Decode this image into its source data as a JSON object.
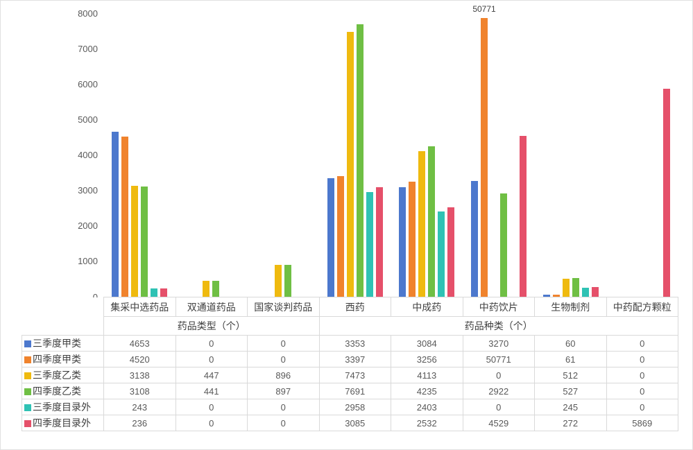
{
  "chart_data": {
    "type": "bar",
    "title": "",
    "xlabel": "",
    "ylabel": "",
    "ylim": [
      0,
      8000
    ],
    "y_ticks": [
      "0",
      "1000",
      "2000",
      "3000",
      "4000",
      "5000",
      "6000",
      "7000",
      "8000"
    ],
    "grid": false,
    "legend_position": "table-left",
    "categories": [
      "集采中选药品",
      "双通道药品",
      "国家谈判药品",
      "西药",
      "中成药",
      "中药饮片",
      "生物制剂",
      "中药配方颗粒"
    ],
    "category_groups": [
      {
        "label": "药品类型（个）",
        "span": 3
      },
      {
        "label": "药品种类（个）",
        "span": 5
      }
    ],
    "series": [
      {
        "name": "三季度甲类",
        "color": "#4C78CD",
        "values": [
          4653,
          0,
          0,
          3353,
          3084,
          3270,
          60,
          0
        ]
      },
      {
        "name": "四季度甲类",
        "color": "#F0832D",
        "values": [
          4520,
          0,
          0,
          3397,
          3256,
          50771,
          61,
          0
        ]
      },
      {
        "name": "三季度乙类",
        "color": "#EFBA0F",
        "values": [
          3138,
          447,
          896,
          7473,
          4113,
          0,
          512,
          0
        ]
      },
      {
        "name": "四季度乙类",
        "color": "#6FBF44",
        "values": [
          3108,
          441,
          897,
          7691,
          4235,
          2922,
          527,
          0
        ]
      },
      {
        "name": "三季度目录外",
        "color": "#2FC2B4",
        "values": [
          243,
          0,
          0,
          2958,
          2403,
          0,
          245,
          0
        ]
      },
      {
        "name": "四季度目录外",
        "color": "#E5506A",
        "values": [
          236,
          0,
          0,
          3085,
          2532,
          4529,
          272,
          5869
        ]
      }
    ],
    "annotation": {
      "text": "50771",
      "series": "四季度甲类",
      "category": "中药饮片"
    }
  }
}
